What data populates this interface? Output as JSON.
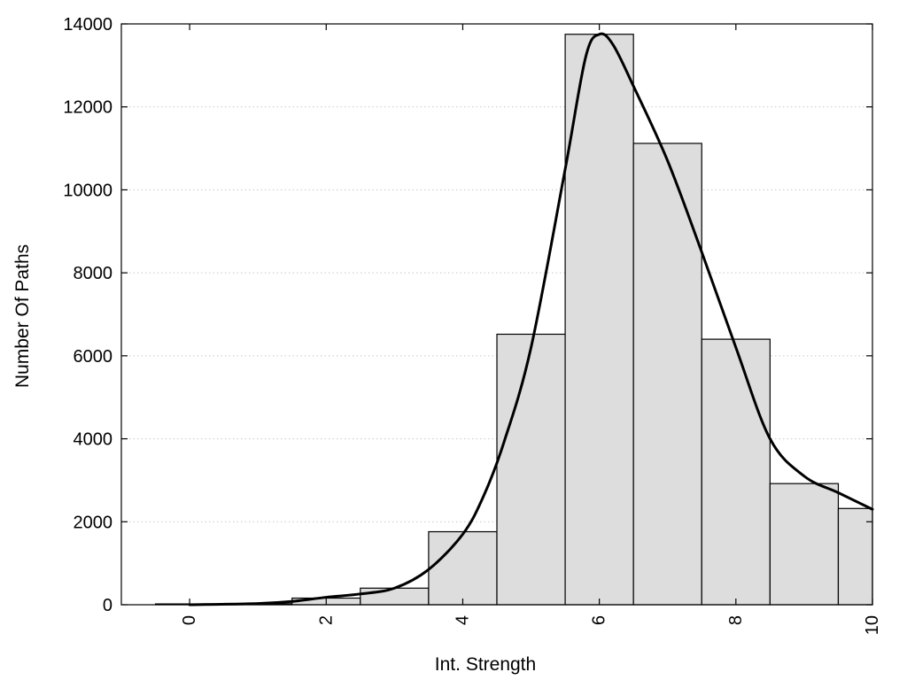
{
  "chart_data": {
    "type": "bar",
    "xlabel": "Int. Strength",
    "ylabel": "Number Of Paths",
    "xlim": [
      -1,
      10
    ],
    "ylim": [
      0,
      14000
    ],
    "x_ticks": [
      0,
      2,
      4,
      6,
      8,
      10
    ],
    "y_ticks": [
      0,
      2000,
      4000,
      6000,
      8000,
      10000,
      12000,
      14000
    ],
    "grid": "horizontal dotted",
    "legend": "none",
    "bin_edges": [
      -0.5,
      0.5,
      1.5,
      2.5,
      3.5,
      4.5,
      5.5,
      6.5,
      7.5,
      8.5,
      9.5,
      10
    ],
    "bin_counts": [
      20,
      25,
      160,
      400,
      1760,
      6520,
      13750,
      11120,
      6400,
      2920,
      2320
    ],
    "density_curve": {
      "x": [
        0,
        1,
        1.5,
        2,
        2.5,
        3,
        3.5,
        4,
        4.3,
        4.6,
        5,
        5.5,
        5.8,
        6,
        6.2,
        6.5,
        7,
        7.5,
        8,
        8.5,
        9,
        9.5,
        10
      ],
      "y": [
        0,
        30,
        80,
        180,
        260,
        400,
        850,
        1700,
        2600,
        3900,
        6200,
        10500,
        13200,
        13750,
        13500,
        12500,
        10700,
        8500,
        6200,
        4000,
        3100,
        2700,
        2300
      ]
    },
    "colors": {
      "bar_fill": "#dddddd",
      "bar_edge": "#000000",
      "curve": "#000000"
    }
  }
}
